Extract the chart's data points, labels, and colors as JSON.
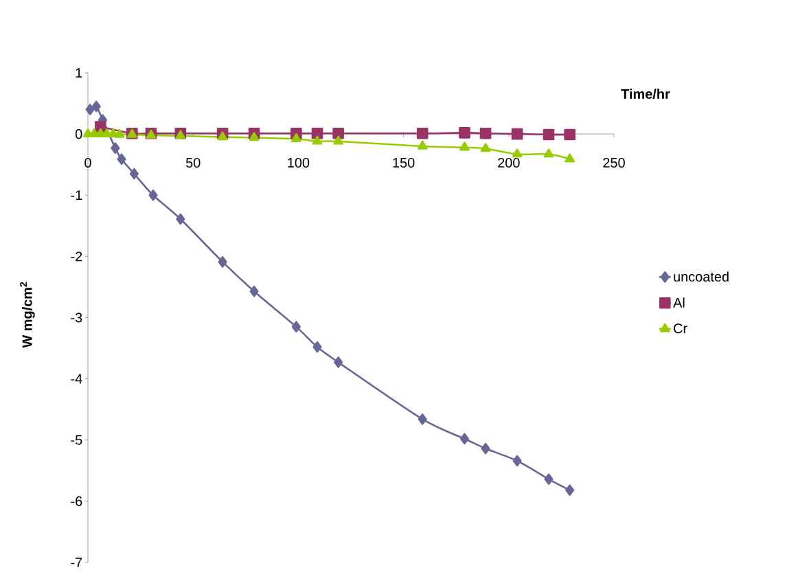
{
  "chart_data": {
    "type": "line",
    "xlabel": "Time/hr",
    "ylabel": "W mg/cm$^{2}$",
    "xlim": [
      0,
      250
    ],
    "xticks": [
      0,
      50,
      100,
      150,
      200,
      250
    ],
    "ylim": [
      -7,
      1
    ],
    "yticks": [
      -7,
      -6,
      -5,
      -4,
      -3,
      -2,
      -1,
      0,
      1
    ],
    "legend": "right",
    "grid": false,
    "series": [
      {
        "name": "uncoated",
        "color": "#666699",
        "marker": "diamond",
        "x": [
          1,
          4,
          7,
          13,
          16,
          22,
          31,
          44,
          64,
          79,
          99,
          109,
          119,
          159,
          179,
          189,
          204,
          219,
          229
        ],
        "values": [
          0.4,
          0.45,
          0.23,
          -0.23,
          -0.41,
          -0.65,
          -1.0,
          -1.39,
          -2.09,
          -2.57,
          -3.15,
          -3.48,
          -3.73,
          -4.66,
          -4.98,
          -5.14,
          -5.34,
          -5.64,
          -5.82
        ]
      },
      {
        "name": "Al",
        "color": "#993366",
        "marker": "square",
        "x": [
          6,
          9,
          12,
          15,
          21,
          30,
          44,
          64,
          79,
          99,
          109,
          119,
          159,
          179,
          189,
          204,
          219,
          229
        ],
        "values": [
          0.12,
          null,
          null,
          null,
          0.01,
          0.01,
          0.01,
          0.01,
          0.01,
          0.01,
          0.01,
          0.01,
          0.01,
          0.02,
          0.01,
          0,
          -0.01,
          -0.01
        ]
      },
      {
        "name": "Cr",
        "color": "#99cc00",
        "marker": "triangle",
        "x": [
          0,
          3,
          6,
          9,
          12,
          15,
          21,
          30,
          44,
          64,
          79,
          99,
          109,
          119,
          159,
          179,
          189,
          204,
          219,
          229
        ],
        "values": [
          0,
          0,
          0,
          0,
          0,
          -0.01,
          -0.01,
          -0.02,
          -0.03,
          -0.05,
          -0.06,
          -0.08,
          -0.12,
          -0.12,
          -0.2,
          -0.22,
          -0.24,
          -0.33,
          -0.33,
          -0.41
        ]
      }
    ]
  }
}
